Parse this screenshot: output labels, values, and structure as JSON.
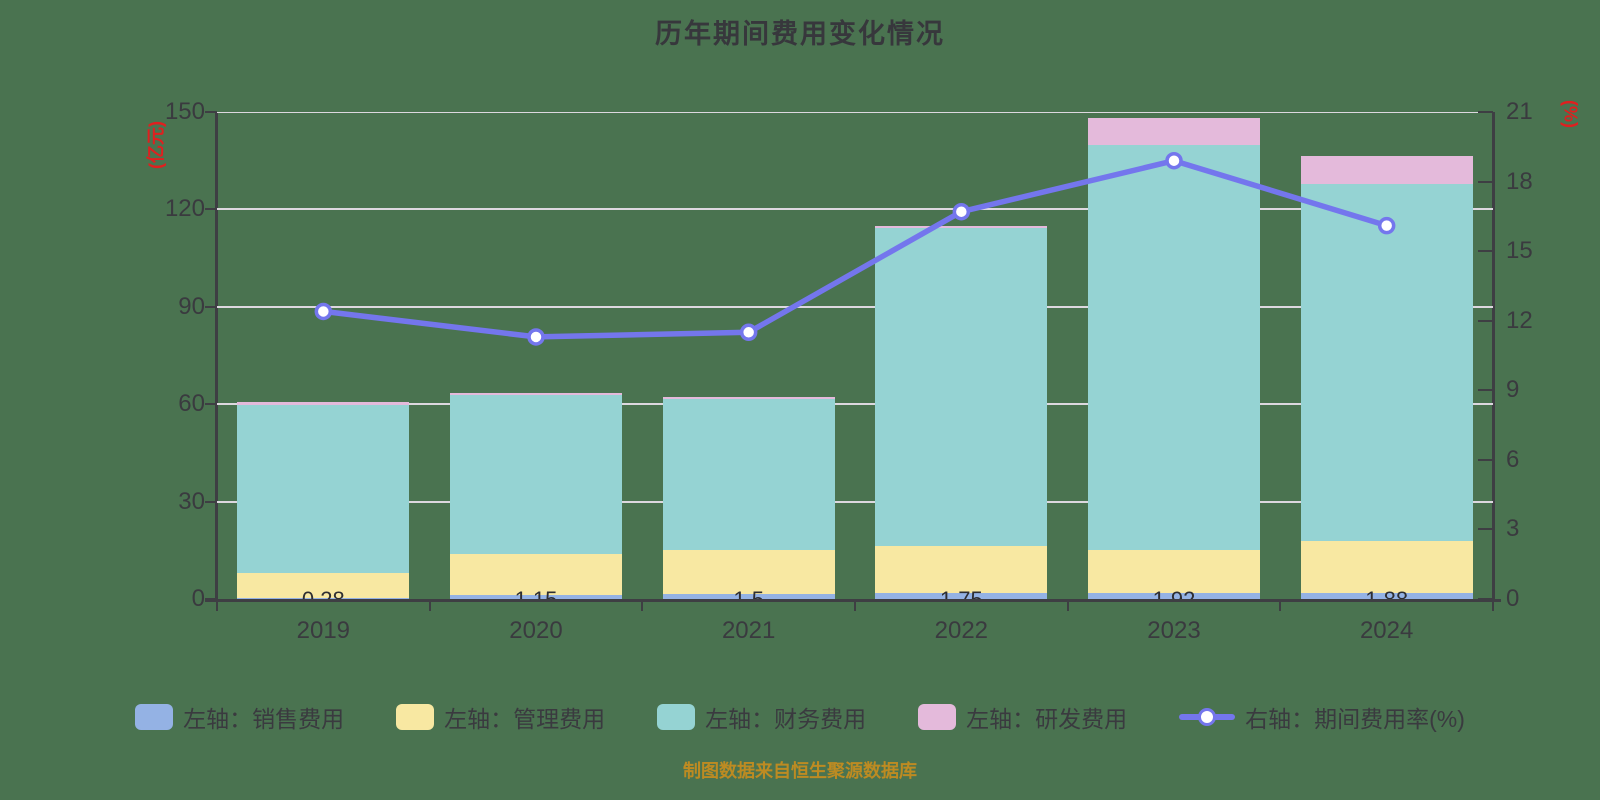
{
  "title": "历年期间费用变化情况",
  "footer": "制图数据来自恒生聚源数据库",
  "axes": {
    "left_unit": "(亿元)",
    "right_unit": "(%)",
    "left_ticks": [
      0,
      30,
      60,
      90,
      120,
      150
    ],
    "right_ticks": [
      0,
      3,
      6,
      9,
      12,
      15,
      18,
      21
    ]
  },
  "colors": {
    "background": "#4a7350",
    "title_text": "#37373c",
    "axis_text": "#3a3a3f",
    "axis_line": "#3e3e43",
    "gridline": "#ddd8df",
    "unit_text": "#e01f1f",
    "footer_text": "#bd8b22",
    "marker_fill": "#ffffff"
  },
  "chart_data": {
    "type": "bar",
    "subtype": "stacked-bars-with-line",
    "title": "历年期间费用变化情况",
    "categories": [
      "2019",
      "2020",
      "2021",
      "2022",
      "2023",
      "2024"
    ],
    "left_axis": {
      "label": "(亿元)",
      "min": 0,
      "max": 150,
      "interval": 30
    },
    "right_axis": {
      "label": "(%)",
      "min": 0,
      "max": 21,
      "interval": 3
    },
    "grid": "horizontal gridlines at left-axis intervals",
    "legend_position": "bottom",
    "series": [
      {
        "key": "sales-expense",
        "name": "左轴：销售费用",
        "type": "bar",
        "stack": true,
        "axis": "left",
        "color": "#94b2e4",
        "values": [
          0.28,
          1.15,
          1.5,
          1.75,
          1.92,
          1.88
        ],
        "data_labels": [
          "0.28",
          "1.15",
          "1.5",
          "1.75",
          "1.92",
          "1.88"
        ]
      },
      {
        "key": "management-expense",
        "name": "左轴：管理费用",
        "type": "bar",
        "stack": true,
        "axis": "left",
        "color": "#f8e8a2",
        "values": [
          7.8,
          12.7,
          13.7,
          14.7,
          13.3,
          16.1
        ]
      },
      {
        "key": "finance-expense",
        "name": "左轴：财务费用",
        "type": "bar",
        "stack": true,
        "axis": "left",
        "color": "#95d3d3",
        "values": [
          51.7,
          49.0,
          46.5,
          97.7,
          124.6,
          109.7
        ]
      },
      {
        "key": "rd-expense",
        "name": "左轴：研发费用",
        "type": "bar",
        "stack": true,
        "axis": "left",
        "color": "#e4badb",
        "values": [
          0.9,
          0.7,
          0.6,
          0.6,
          8.3,
          8.7
        ]
      },
      {
        "key": "period-expense-rate",
        "name": "右轴：期间费用率(%)",
        "type": "line",
        "axis": "right",
        "color": "#7476ed",
        "values": [
          12.4,
          11.3,
          11.5,
          16.7,
          18.9,
          16.1
        ]
      }
    ]
  }
}
